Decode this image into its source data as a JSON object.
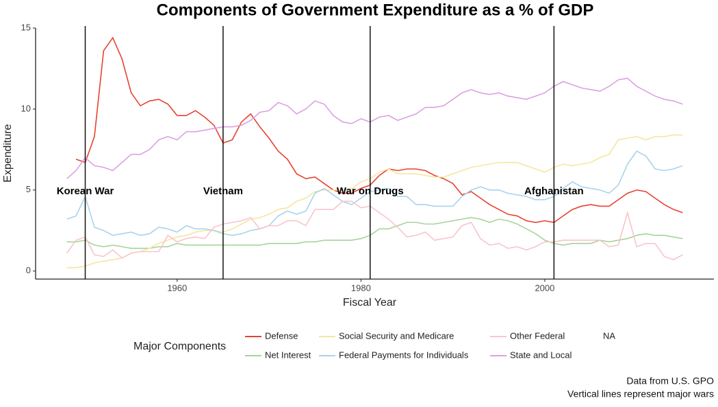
{
  "chart_data": {
    "type": "line",
    "title": "Components of Government Expenditure as a % of GDP",
    "x_label": "Fiscal Year",
    "y_label": "Expenditure",
    "legend_title": "Major Components",
    "legend_na": "NA",
    "captions": [
      "Data from U.S. GPO",
      "Vertical lines represent major wars"
    ],
    "xlim": [
      1944.6,
      2018.4
    ],
    "xticks": [
      1960,
      1980,
      2000
    ],
    "ylim": [
      -0.5,
      15
    ],
    "yticks": [
      0,
      5,
      10,
      15
    ],
    "annotations": [
      {
        "x": 1950,
        "y": 4.9,
        "label": "Korean War"
      },
      {
        "x": 1965,
        "y": 4.9,
        "label": "Vietnam"
      },
      {
        "x": 1981,
        "y": 4.9,
        "label": "War on Drugs"
      },
      {
        "x": 2001,
        "y": 4.9,
        "label": "Afghanistan"
      }
    ],
    "x": [
      1948,
      1949,
      1950,
      1951,
      1952,
      1953,
      1954,
      1955,
      1956,
      1957,
      1958,
      1959,
      1960,
      1961,
      1962,
      1963,
      1964,
      1965,
      1966,
      1967,
      1968,
      1969,
      1970,
      1971,
      1972,
      1973,
      1974,
      1975,
      1976,
      1977,
      1978,
      1979,
      1980,
      1981,
      1982,
      1983,
      1984,
      1985,
      1986,
      1987,
      1988,
      1989,
      1990,
      1991,
      1992,
      1993,
      1994,
      1995,
      1996,
      1997,
      1998,
      1999,
      2000,
      2001,
      2002,
      2003,
      2004,
      2005,
      2006,
      2007,
      2008,
      2009,
      2010,
      2011,
      2012,
      2013,
      2014,
      2015
    ],
    "series": [
      {
        "name": "Defense",
        "color": "#e8412e",
        "values": [
          null,
          6.9,
          6.7,
          8.3,
          13.6,
          14.4,
          13.1,
          11.0,
          10.2,
          10.5,
          10.6,
          10.3,
          9.6,
          9.6,
          9.9,
          9.5,
          9.0,
          7.9,
          8.1,
          9.2,
          9.7,
          8.9,
          8.2,
          7.4,
          6.9,
          6.0,
          5.7,
          5.8,
          5.4,
          5.0,
          4.8,
          4.8,
          5.1,
          5.3,
          5.9,
          6.3,
          6.2,
          6.3,
          6.3,
          6.2,
          5.9,
          5.7,
          5.4,
          4.7,
          4.9,
          4.5,
          4.1,
          3.8,
          3.5,
          3.4,
          3.1,
          3.0,
          3.1,
          3.0,
          3.4,
          3.8,
          4.0,
          4.1,
          4.0,
          4.0,
          4.4,
          4.8,
          5.0,
          4.9,
          4.5,
          4.1,
          3.8,
          3.6
        ]
      },
      {
        "name": "Net Interest",
        "color": "#a6d49b",
        "values": [
          1.8,
          1.8,
          1.9,
          1.6,
          1.5,
          1.6,
          1.5,
          1.4,
          1.4,
          1.4,
          1.5,
          1.5,
          1.7,
          1.6,
          1.6,
          1.6,
          1.6,
          1.6,
          1.6,
          1.6,
          1.6,
          1.6,
          1.7,
          1.7,
          1.7,
          1.7,
          1.8,
          1.8,
          1.9,
          1.9,
          1.9,
          1.9,
          2.0,
          2.2,
          2.6,
          2.6,
          2.8,
          3.0,
          3.0,
          2.9,
          2.9,
          3.0,
          3.1,
          3.2,
          3.3,
          3.2,
          3.0,
          3.2,
          3.1,
          2.9,
          2.6,
          2.3,
          1.9,
          1.7,
          1.6,
          1.7,
          1.7,
          1.7,
          1.9,
          1.8,
          1.9,
          2.0,
          2.2,
          2.3,
          2.2,
          2.2,
          2.1,
          2.0
        ]
      },
      {
        "name": "Social Security and Medicare",
        "color": "#f5e6a0",
        "values": [
          0.2,
          0.2,
          0.3,
          0.5,
          0.6,
          0.7,
          0.8,
          1.1,
          1.2,
          1.4,
          1.7,
          1.9,
          2.1,
          2.2,
          2.4,
          2.5,
          2.5,
          2.4,
          2.6,
          2.9,
          3.2,
          3.3,
          3.5,
          3.8,
          3.9,
          4.3,
          4.5,
          4.9,
          5.0,
          5.0,
          5.0,
          5.1,
          5.5,
          5.7,
          6.1,
          6.3,
          6.0,
          6.0,
          6.0,
          5.9,
          5.8,
          5.8,
          6.0,
          6.2,
          6.4,
          6.5,
          6.6,
          6.7,
          6.7,
          6.7,
          6.5,
          6.3,
          6.1,
          6.4,
          6.6,
          6.5,
          6.6,
          6.7,
          7.0,
          7.2,
          8.1,
          8.2,
          8.3,
          8.1,
          8.3,
          8.3,
          8.4,
          8.4
        ]
      },
      {
        "name": "Federal Payments for Individuals",
        "color": "#a8d3ec",
        "values": [
          3.2,
          3.4,
          4.6,
          2.7,
          2.5,
          2.2,
          2.3,
          2.4,
          2.2,
          2.3,
          2.7,
          2.6,
          2.4,
          2.8,
          2.6,
          2.6,
          2.5,
          2.3,
          2.2,
          2.3,
          2.5,
          2.6,
          2.8,
          3.4,
          3.7,
          3.5,
          3.7,
          4.8,
          5.1,
          4.7,
          4.3,
          4.1,
          4.5,
          4.9,
          5.0,
          5.1,
          4.6,
          4.6,
          4.1,
          4.1,
          4.0,
          4.0,
          4.0,
          4.6,
          5.0,
          5.2,
          5.0,
          5.0,
          4.8,
          4.7,
          4.6,
          4.4,
          4.4,
          4.6,
          5.1,
          5.5,
          5.2,
          5.1,
          5.0,
          4.8,
          5.3,
          6.6,
          7.4,
          7.1,
          6.3,
          6.2,
          6.3,
          6.5
        ]
      },
      {
        "name": "Other Federal",
        "color": "#f9c4cd",
        "values": [
          1.1,
          1.9,
          2.1,
          1.0,
          0.9,
          1.3,
          0.8,
          1.1,
          1.2,
          1.2,
          1.2,
          2.2,
          1.8,
          2.0,
          2.1,
          2.0,
          2.7,
          2.9,
          3.0,
          3.1,
          3.3,
          2.6,
          2.8,
          2.8,
          3.1,
          3.1,
          2.8,
          3.8,
          3.8,
          3.8,
          4.3,
          4.3,
          3.9,
          4.0,
          3.6,
          3.2,
          2.7,
          2.1,
          2.2,
          2.4,
          1.9,
          2.0,
          2.1,
          2.8,
          3.0,
          2.0,
          1.6,
          1.7,
          1.4,
          1.5,
          1.3,
          1.5,
          1.8,
          1.8,
          1.9,
          1.9,
          1.9,
          1.9,
          1.9,
          1.5,
          1.6,
          3.6,
          1.5,
          1.7,
          1.7,
          0.9,
          0.7,
          1.0
        ]
      },
      {
        "name": "State and Local",
        "color": "#dca0e3",
        "values": [
          5.7,
          6.2,
          7.0,
          6.5,
          6.4,
          6.2,
          6.7,
          7.2,
          7.2,
          7.5,
          8.1,
          8.3,
          8.1,
          8.6,
          8.6,
          8.7,
          8.8,
          8.9,
          8.9,
          9.0,
          9.3,
          9.8,
          9.9,
          10.4,
          10.2,
          9.7,
          10.0,
          10.5,
          10.3,
          9.6,
          9.2,
          9.1,
          9.4,
          9.2,
          9.5,
          9.6,
          9.3,
          9.5,
          9.7,
          10.1,
          10.1,
          10.2,
          10.6,
          11.0,
          11.2,
          11.0,
          10.9,
          11.0,
          10.8,
          10.7,
          10.6,
          10.8,
          11.0,
          11.4,
          11.7,
          11.5,
          11.3,
          11.2,
          11.1,
          11.4,
          11.8,
          11.9,
          11.4,
          11.1,
          10.8,
          10.6,
          10.5,
          10.3
        ]
      }
    ]
  }
}
